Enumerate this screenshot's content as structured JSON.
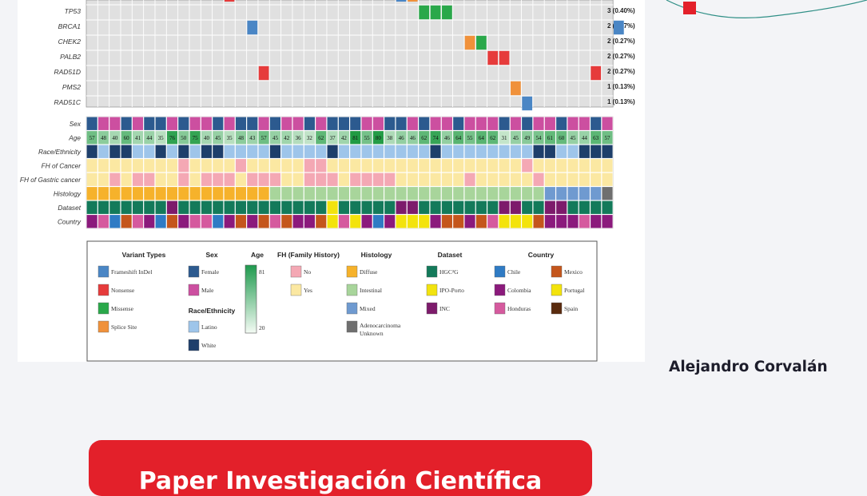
{
  "oncoplot": {
    "genes": [
      {
        "name": "TP53",
        "pct": "3 (0.40%)",
        "hits": [
          {
            "c": 29,
            "t": "missense"
          },
          {
            "c": 30,
            "t": "missense"
          },
          {
            "c": 31,
            "t": "missense"
          }
        ]
      },
      {
        "name": "BRCA1",
        "pct": "2 (0.27%)",
        "hits": [
          {
            "c": 14,
            "t": "frameshift"
          },
          {
            "c": 46,
            "t": "frameshift"
          }
        ]
      },
      {
        "name": "CHEK2",
        "pct": "2 (0.27%)",
        "hits": [
          {
            "c": 33,
            "t": "splice"
          },
          {
            "c": 34,
            "t": "missense"
          }
        ]
      },
      {
        "name": "PALB2",
        "pct": "2 (0.27%)",
        "hits": [
          {
            "c": 35,
            "t": "nonsense"
          },
          {
            "c": 36,
            "t": "nonsense"
          }
        ]
      },
      {
        "name": "RAD51D",
        "pct": "2 (0.27%)",
        "hits": [
          {
            "c": 15,
            "t": "nonsense"
          },
          {
            "c": 44,
            "t": "nonsense"
          }
        ]
      },
      {
        "name": "PMS2",
        "pct": "1 (0.13%)",
        "hits": [
          {
            "c": 37,
            "t": "splice"
          }
        ]
      },
      {
        "name": "RAD51C",
        "pct": "1 (0.13%)",
        "hits": [
          {
            "c": 38,
            "t": "frameshift"
          }
        ]
      }
    ],
    "annotation_labels": [
      "Sex",
      "Age",
      "Race/Ethnicity",
      "FH of Cancer",
      "FH of Gastric cancer",
      "Histology",
      "Dataset",
      "Country"
    ],
    "ages": [
      "57",
      "48",
      "40",
      "60",
      "41",
      "44",
      "35",
      "76",
      "50",
      "75",
      "40",
      "45",
      "35",
      "48",
      "43",
      "57",
      "45",
      "42",
      "36",
      "32",
      "62",
      "37",
      "42",
      "81",
      "55",
      "80",
      "38",
      "46",
      "46",
      "62",
      "74",
      "46",
      "64",
      "55",
      "64",
      "62",
      "31",
      "45",
      "49",
      "54",
      "61",
      "60",
      "45",
      "44",
      "63"
    ],
    "sex": "FMMFMFFMFMMFMFFMFMMFMFFFMMFFMFMMFMMMFMFMMFMMFM",
    "race": "WLWWLLWLWLWWLLLLWLLLLWLLLLLLLLWLLLLLLLLWWLLWWWLLL",
    "fh_cancer": "YYYYYYYYNYYYYNYYYYYNNYYYYYYYYYYYYYYYYYNYYYYYYYY",
    "fh_gastric": "YYNYNNYYNYNNNYNNNYYNNNYNNNNYYYYYYNYYYYYNYYYYYYYY",
    "histology": "DDDDDDDDDDDDDDDDIIIIIIIIIIIIIIIIIIIIIIIIMMMMMAAA",
    "dataset": "HHHHHHHIHHHHHSHSHHSSHPHSSSHIIHHHHSHSIIHSIIHHHH",
    "country": "SHCMHSCMSHHCSMSMHMSSMPHPSCSPPPSMMSMHPPPMSSSHSS",
    "legend": {
      "variant_types": {
        "title": "Variant Types",
        "items": [
          {
            "label": "Frameshift InDel",
            "color": "#4a86c5"
          },
          {
            "label": "Nonsense",
            "color": "#e63b3b"
          },
          {
            "label": "Missense",
            "color": "#2aa84a"
          },
          {
            "label": "Splice Site",
            "color": "#f0913a"
          }
        ]
      },
      "sex": {
        "title": "Sex",
        "items": [
          {
            "label": "Female",
            "color": "#2c5a8f"
          },
          {
            "label": "Male",
            "color": "#cc4fa0"
          }
        ]
      },
      "race": {
        "title": "Race/Ethnicity",
        "items": [
          {
            "label": "Latino",
            "color": "#9ec5ea"
          },
          {
            "label": "White",
            "color": "#1e3f6b"
          }
        ]
      },
      "age": {
        "title": "Age",
        "max": "81",
        "min": "20"
      },
      "fh": {
        "title": "FH (Family History)",
        "items": [
          {
            "label": "No",
            "color": "#f4a8b4"
          },
          {
            "label": "Yes",
            "color": "#fbe8a2"
          }
        ]
      },
      "histology": {
        "title": "Histology",
        "items": [
          {
            "label": "Diffuse",
            "color": "#f6b22b"
          },
          {
            "label": "Intestinal",
            "color": "#a8d59b"
          },
          {
            "label": "Mixed",
            "color": "#6f9ad0"
          },
          {
            "label": "Adenocarcinoma Unknown",
            "color": "#6f6f6f"
          }
        ]
      },
      "dataset": {
        "title": "Dataset",
        "items": [
          {
            "label": "HGC²G",
            "color": "#137a5a"
          },
          {
            "label": "IPO-Porto",
            "color": "#f2e30f"
          },
          {
            "label": "INC",
            "color": "#7d1b6b"
          }
        ]
      },
      "country": {
        "title": "Country",
        "items": [
          {
            "label": "Chile",
            "color": "#2f7bc4"
          },
          {
            "label": "Mexico",
            "color": "#c4561c"
          },
          {
            "label": "Colombia",
            "color": "#8b1a7c"
          },
          {
            "label": "Portugal",
            "color": "#f3e30c"
          },
          {
            "label": "Honduras",
            "color": "#d55a9e"
          },
          {
            "label": "Spain",
            "color": "#5a2b0e"
          }
        ]
      }
    }
  },
  "sidebar": {
    "author_name": "Alejandro Corvalán",
    "marker_color": "#e3202a"
  },
  "cta": {
    "label": "Paper Investigación Científica"
  },
  "colors": {
    "page_bg": "#f3f4f7",
    "grid_bg": "#e0e0e0",
    "grid_line": "#ffffff",
    "frameshift": "#4a86c5",
    "nonsense": "#e63b3b",
    "missense": "#2aa84a",
    "splice": "#f0913a",
    "sex_F": "#2c5a8f",
    "sex_M": "#cc4fa0",
    "race_L": "#9ec5ea",
    "race_W": "#1e3f6b",
    "fh_N": "#f4a8b4",
    "fh_Y": "#fbe8a2",
    "hist_D": "#f6b22b",
    "hist_I": "#a8d59b",
    "hist_M": "#6f9ad0",
    "hist_A": "#6f6f6f",
    "ds_H": "#137a5a",
    "ds_P": "#f2e30f",
    "ds_I": "#7d1b6b",
    "ds_S": "#137a5a",
    "ct_C": "#2f7bc4",
    "ct_M": "#c4561c",
    "ct_H": "#d55a9e",
    "ct_P": "#f3e30c",
    "ct_S": "#8b1a7c",
    "cta_bg": "#e3202a"
  }
}
